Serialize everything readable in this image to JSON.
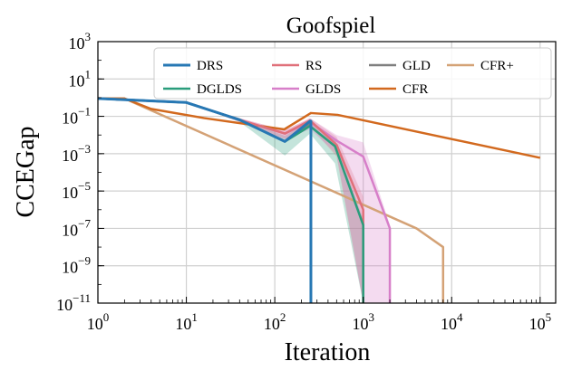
{
  "chart_data": {
    "type": "line",
    "title": "Goofspiel",
    "xlabel": "Iteration",
    "ylabel": "CCEGap",
    "xscale": "log",
    "yscale": "log",
    "xlim": [
      1,
      150000
    ],
    "ylim": [
      1e-11,
      1000
    ],
    "grid": true,
    "legend_position": "top-right",
    "x_ticks": [
      {
        "value": 1,
        "base": "10",
        "exp": "0"
      },
      {
        "value": 10,
        "base": "10",
        "exp": "1"
      },
      {
        "value": 100,
        "base": "10",
        "exp": "2"
      },
      {
        "value": 1000,
        "base": "10",
        "exp": "3"
      },
      {
        "value": 10000,
        "base": "10",
        "exp": "4"
      },
      {
        "value": 100000,
        "base": "10",
        "exp": "5"
      }
    ],
    "y_ticks": [
      {
        "value": 1e-11,
        "base": "10",
        "exp": "−11"
      },
      {
        "value": 1e-09,
        "base": "10",
        "exp": "−9"
      },
      {
        "value": 1e-07,
        "base": "10",
        "exp": "−7"
      },
      {
        "value": 1e-05,
        "base": "10",
        "exp": "−5"
      },
      {
        "value": 0.001,
        "base": "10",
        "exp": "−3"
      },
      {
        "value": 0.1,
        "base": "10",
        "exp": "−1"
      },
      {
        "value": 10,
        "base": "10",
        "exp": "1"
      },
      {
        "value": 1000,
        "base": "10",
        "exp": "3"
      }
    ],
    "series": [
      {
        "name": "DRS",
        "color": "#2778b4",
        "width": 3,
        "x": [
          1,
          10,
          40,
          130,
          250,
          256,
          256
        ],
        "y": [
          0.9,
          0.55,
          0.065,
          0.0045,
          0.055,
          0.055,
          1e-11
        ]
      },
      {
        "name": "DGLDS",
        "color": "#2a9d7c",
        "width": 2.5,
        "x": [
          1,
          10,
          40,
          130,
          250,
          480,
          1000,
          1000
        ],
        "y": [
          0.9,
          0.55,
          0.065,
          0.0045,
          0.03,
          0.0025,
          1.5e-07,
          1e-11
        ],
        "band_upper": [
          0.9,
          0.55,
          0.08,
          0.009,
          0.06,
          0.006,
          3e-07,
          1e-11
        ],
        "band_lower": [
          0.9,
          0.55,
          0.05,
          0.0008,
          0.012,
          0.0003,
          1e-11,
          1e-11
        ]
      },
      {
        "name": "RS",
        "color": "#e0707a",
        "width": 2.5,
        "x": [
          1,
          10,
          40,
          130,
          250,
          500,
          1000,
          1000
        ],
        "y": [
          0.9,
          0.55,
          0.065,
          0.012,
          0.06,
          0.003,
          1e-06,
          1e-11
        ],
        "band_upper": [
          0.9,
          0.55,
          0.08,
          0.018,
          0.08,
          0.008,
          5e-06,
          1e-11
        ],
        "band_lower": [
          0.9,
          0.55,
          0.05,
          0.006,
          0.03,
          0.0007,
          1e-11,
          1e-11
        ]
      },
      {
        "name": "GLDS",
        "color": "#d77fc9",
        "width": 2.5,
        "x": [
          1,
          10,
          40,
          130,
          250,
          500,
          1000,
          2000,
          2000
        ],
        "y": [
          0.9,
          0.55,
          0.065,
          0.012,
          0.05,
          0.005,
          0.0007,
          1e-07,
          1e-11
        ],
        "band_upper": [
          0.9,
          0.55,
          0.08,
          0.018,
          0.08,
          0.01,
          0.004,
          1.5e-07,
          1e-11
        ],
        "band_lower": [
          0.9,
          0.55,
          0.05,
          0.006,
          0.02,
          0.001,
          1e-11,
          1e-11,
          1e-11
        ]
      },
      {
        "name": "GLD",
        "color": "#7f7f7f",
        "width": 2.5,
        "x": [
          1,
          10,
          40,
          130,
          250,
          256,
          256
        ],
        "y": [
          0.9,
          0.55,
          0.065,
          0.0045,
          0.04,
          0.04,
          1e-11
        ]
      },
      {
        "name": "CFR",
        "color": "#d2691e",
        "width": 2.5,
        "x": [
          1,
          2,
          4,
          16,
          128,
          256,
          512,
          100000
        ],
        "y": [
          0.9,
          0.9,
          0.25,
          0.08,
          0.02,
          0.15,
          0.12,
          0.0006
        ]
      },
      {
        "name": "CFR+",
        "color": "#d4a276",
        "width": 2.5,
        "x": [
          1,
          2,
          4000,
          8000,
          8000
        ],
        "y": [
          0.9,
          0.9,
          1e-07,
          1e-08,
          1e-11
        ]
      }
    ]
  }
}
